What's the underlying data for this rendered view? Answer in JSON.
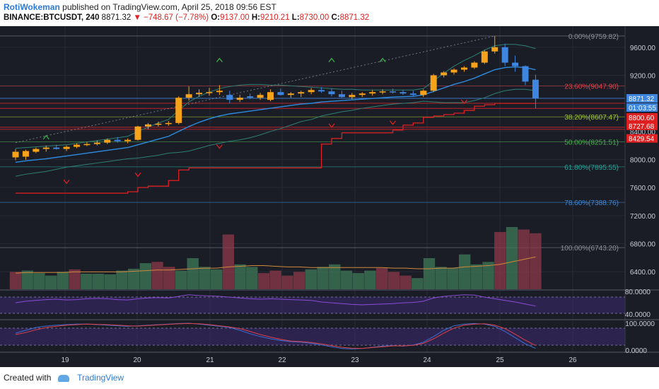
{
  "header": {
    "author": "RotiWokeman",
    "published": "published on TradingView.com, April 25, 2018 09:56 EST",
    "symbol": "BINANCE:BTCUSDT, 240",
    "last": "8871.32",
    "change": "▼ −748.67 (−7.78%)",
    "o_label": "O:",
    "o": "9137.00",
    "h_label": "H:",
    "h": "9210.21",
    "l_label": "L:",
    "l": "8730.00",
    "c_label": "C:",
    "c": "8871.32"
  },
  "footer": {
    "created_with": "Created with",
    "brand": "TradingView"
  },
  "colors": {
    "up": "#f7a21b",
    "down": "#3f86e0",
    "background": "#1a1d26"
  },
  "chart_data": {
    "type": "candlestick",
    "title": "",
    "symbol": "BINANCE:BTCUSDT",
    "interval": "240",
    "x_ticks": [
      "19",
      "20",
      "21",
      "22",
      "23",
      "24",
      "25",
      "26"
    ],
    "y_ticks": [
      "6400.00",
      "6800.00",
      "7200.00",
      "7600.00",
      "8000.00",
      "8400.00",
      "9200.00",
      "9600.00"
    ],
    "ylim": [
      6150,
      9900
    ],
    "candles": [
      {
        "o": 8030,
        "h": 8150,
        "l": 7990,
        "c": 8110
      },
      {
        "o": 8040,
        "h": 8140,
        "l": 7995,
        "c": 8120
      },
      {
        "o": 8110,
        "h": 8170,
        "l": 8090,
        "c": 8150
      },
      {
        "o": 8150,
        "h": 8200,
        "l": 8110,
        "c": 8170
      },
      {
        "o": 8170,
        "h": 8210,
        "l": 8140,
        "c": 8150
      },
      {
        "o": 8150,
        "h": 8200,
        "l": 8120,
        "c": 8180
      },
      {
        "o": 8180,
        "h": 8230,
        "l": 8160,
        "c": 8210
      },
      {
        "o": 8210,
        "h": 8250,
        "l": 8190,
        "c": 8220
      },
      {
        "o": 8220,
        "h": 8270,
        "l": 8200,
        "c": 8240
      },
      {
        "o": 8240,
        "h": 8300,
        "l": 8220,
        "c": 8280
      },
      {
        "o": 8280,
        "h": 8320,
        "l": 8240,
        "c": 8260
      },
      {
        "o": 8260,
        "h": 8300,
        "l": 8230,
        "c": 8280
      },
      {
        "o": 8280,
        "h": 8480,
        "l": 8270,
        "c": 8470
      },
      {
        "o": 8470,
        "h": 8520,
        "l": 8430,
        "c": 8500
      },
      {
        "o": 8500,
        "h": 8540,
        "l": 8470,
        "c": 8510
      },
      {
        "o": 8510,
        "h": 8550,
        "l": 8480,
        "c": 8520
      },
      {
        "o": 8520,
        "h": 8900,
        "l": 8500,
        "c": 8880
      },
      {
        "o": 8880,
        "h": 9040,
        "l": 8840,
        "c": 8930
      },
      {
        "o": 8930,
        "h": 9000,
        "l": 8890,
        "c": 8950
      },
      {
        "o": 8950,
        "h": 9020,
        "l": 8910,
        "c": 8960
      },
      {
        "o": 8960,
        "h": 9060,
        "l": 8920,
        "c": 8980
      },
      {
        "o": 8920,
        "h": 8980,
        "l": 8800,
        "c": 8850
      },
      {
        "o": 8850,
        "h": 8920,
        "l": 8820,
        "c": 8880
      },
      {
        "o": 8900,
        "h": 8940,
        "l": 8860,
        "c": 8880
      },
      {
        "o": 8880,
        "h": 8950,
        "l": 8850,
        "c": 8920
      },
      {
        "o": 8850,
        "h": 9000,
        "l": 8830,
        "c": 8960
      },
      {
        "o": 8960,
        "h": 9010,
        "l": 8910,
        "c": 8920
      },
      {
        "o": 8920,
        "h": 8960,
        "l": 8880,
        "c": 8940
      },
      {
        "o": 8940,
        "h": 8980,
        "l": 8890,
        "c": 8960
      },
      {
        "o": 8960,
        "h": 9020,
        "l": 8930,
        "c": 8990
      },
      {
        "o": 8990,
        "h": 9030,
        "l": 8950,
        "c": 8970
      },
      {
        "o": 8970,
        "h": 9010,
        "l": 8900,
        "c": 8930
      },
      {
        "o": 8930,
        "h": 8980,
        "l": 8880,
        "c": 8890
      },
      {
        "o": 8890,
        "h": 8950,
        "l": 8860,
        "c": 8920
      },
      {
        "o": 8920,
        "h": 8960,
        "l": 8890,
        "c": 8940
      },
      {
        "o": 8940,
        "h": 8990,
        "l": 8910,
        "c": 8960
      },
      {
        "o": 8960,
        "h": 9000,
        "l": 8930,
        "c": 8970
      },
      {
        "o": 8970,
        "h": 9010,
        "l": 8940,
        "c": 8960
      },
      {
        "o": 8960,
        "h": 8990,
        "l": 8920,
        "c": 8940
      },
      {
        "o": 8940,
        "h": 8980,
        "l": 8900,
        "c": 8920
      },
      {
        "o": 8920,
        "h": 9000,
        "l": 8890,
        "c": 8980
      },
      {
        "o": 8980,
        "h": 9220,
        "l": 8960,
        "c": 9200
      },
      {
        "o": 9200,
        "h": 9260,
        "l": 9170,
        "c": 9240
      },
      {
        "o": 9240,
        "h": 9300,
        "l": 9210,
        "c": 9280
      },
      {
        "o": 9280,
        "h": 9330,
        "l": 9250,
        "c": 9310
      },
      {
        "o": 9310,
        "h": 9400,
        "l": 9290,
        "c": 9380
      },
      {
        "o": 9380,
        "h": 9560,
        "l": 9360,
        "c": 9540
      },
      {
        "o": 9540,
        "h": 9760,
        "l": 9510,
        "c": 9600
      },
      {
        "o": 9600,
        "h": 9650,
        "l": 9330,
        "c": 9380
      },
      {
        "o": 9380,
        "h": 9480,
        "l": 9250,
        "c": 9330
      },
      {
        "o": 9330,
        "h": 9340,
        "l": 9060,
        "c": 9110
      },
      {
        "o": 9137,
        "h": 9210,
        "l": 8730,
        "c": 8871
      }
    ],
    "bollinger": {
      "basis": [
        7960,
        7980,
        7995,
        8010,
        8030,
        8050,
        8070,
        8090,
        8110,
        8130,
        8150,
        8170,
        8210,
        8250,
        8290,
        8330,
        8400,
        8470,
        8530,
        8580,
        8620,
        8650,
        8670,
        8690,
        8710,
        8730,
        8750,
        8770,
        8790,
        8800,
        8820,
        8830,
        8840,
        8850,
        8860,
        8870,
        8880,
        8890,
        8895,
        8900,
        8920,
        8970,
        9020,
        9070,
        9110,
        9160,
        9220,
        9280,
        9310,
        9320,
        9310,
        9280
      ],
      "upper": [
        8160,
        8170,
        8180,
        8190,
        8200,
        8210,
        8230,
        8250,
        8270,
        8290,
        8310,
        8330,
        8400,
        8460,
        8520,
        8570,
        8700,
        8820,
        8900,
        8960,
        9010,
        9040,
        9060,
        9070,
        9070,
        9060,
        9060,
        9050,
        9040,
        9030,
        9020,
        9010,
        9000,
        9000,
        8990,
        8990,
        8990,
        8990,
        8990,
        8990,
        9010,
        9120,
        9230,
        9330,
        9410,
        9480,
        9560,
        9620,
        9640,
        9640,
        9620,
        9580
      ],
      "lower": [
        7760,
        7790,
        7810,
        7830,
        7860,
        7890,
        7910,
        7930,
        7950,
        7970,
        7990,
        8010,
        8020,
        8040,
        8060,
        8090,
        8100,
        8120,
        8160,
        8200,
        8230,
        8260,
        8280,
        8310,
        8350,
        8400,
        8440,
        8490,
        8540,
        8570,
        8620,
        8650,
        8680,
        8700,
        8730,
        8750,
        8770,
        8790,
        8800,
        8810,
        8830,
        8820,
        8810,
        8810,
        8810,
        8840,
        8880,
        8940,
        8980,
        9000,
        9000,
        8980
      ]
    },
    "stop_line": [
      7520,
      7520,
      7520,
      7520,
      7520,
      7520,
      7520,
      7520,
      7520,
      7520,
      7520,
      7540,
      7600,
      7620,
      7620,
      7700,
      7850,
      7880,
      7880,
      7880,
      7880,
      7880,
      7880,
      7880,
      7880,
      7880,
      7880,
      7880,
      7880,
      7880,
      8220,
      8300,
      8380,
      8380,
      8380,
      8380,
      8380,
      8420,
      8490,
      8520,
      8600,
      8620,
      8640,
      8660,
      8700,
      8760,
      8780,
      8800,
      8800,
      8800,
      8800,
      8800
    ],
    "fibonacci": [
      {
        "label": "0.00%(9759.82)",
        "price": 9759.82,
        "color": "#8c8f99"
      },
      {
        "label": "23.60%(9047.90)",
        "price": 9047.9,
        "color": "#e0434b"
      },
      {
        "label": "38.20%(8607.47)",
        "price": 8607.47,
        "color": "#a3c837"
      },
      {
        "label": "50.00%(8251.51)",
        "price": 8251.51,
        "color": "#4caf50"
      },
      {
        "label": "61.80%(7895.55)",
        "price": 7895.55,
        "color": "#26a69a"
      },
      {
        "label": "78.60%(7388.76)",
        "price": 7388.76,
        "color": "#3f88d8"
      },
      {
        "label": "100.00%(6743.20)",
        "price": 6743.2,
        "color": "#8c8f99"
      }
    ],
    "price_labels": [
      {
        "text": "8871.32",
        "price": 8871.32,
        "color": "#3f86e0"
      },
      {
        "text": "01:03:55",
        "price": 8740,
        "color": "#3f86e0"
      },
      {
        "text": "8800.60",
        "price": 8600,
        "color": "#e02020"
      },
      {
        "text": "8727.68",
        "price": 8480,
        "color": "#e02020"
      },
      {
        "text": "8429.54",
        "price": 8300,
        "color": "#e02020"
      }
    ],
    "volume": [
      {
        "v": 0.28,
        "up": false
      },
      {
        "v": 0.3,
        "up": true
      },
      {
        "v": 0.26,
        "up": true
      },
      {
        "v": 0.22,
        "up": true
      },
      {
        "v": 0.28,
        "up": true
      },
      {
        "v": 0.32,
        "up": false
      },
      {
        "v": 0.25,
        "up": true
      },
      {
        "v": 0.25,
        "up": true
      },
      {
        "v": 0.24,
        "up": true
      },
      {
        "v": 0.3,
        "up": true
      },
      {
        "v": 0.33,
        "up": true
      },
      {
        "v": 0.42,
        "up": true
      },
      {
        "v": 0.44,
        "up": false
      },
      {
        "v": 0.36,
        "up": false
      },
      {
        "v": 0.3,
        "up": true
      },
      {
        "v": 0.5,
        "up": true
      },
      {
        "v": 0.36,
        "up": true
      },
      {
        "v": 0.32,
        "up": true
      },
      {
        "v": 0.88,
        "up": false
      },
      {
        "v": 0.4,
        "up": true
      },
      {
        "v": 0.36,
        "up": true
      },
      {
        "v": 0.26,
        "up": false
      },
      {
        "v": 0.3,
        "up": false
      },
      {
        "v": 0.22,
        "up": false
      },
      {
        "v": 0.28,
        "up": false
      },
      {
        "v": 0.32,
        "up": true
      },
      {
        "v": 0.36,
        "up": true
      },
      {
        "v": 0.4,
        "up": true
      },
      {
        "v": 0.3,
        "up": true
      },
      {
        "v": 0.26,
        "up": true
      },
      {
        "v": 0.3,
        "up": true
      },
      {
        "v": 0.34,
        "up": false
      },
      {
        "v": 0.28,
        "up": false
      },
      {
        "v": 0.22,
        "up": false
      },
      {
        "v": 0.18,
        "up": true
      },
      {
        "v": 0.5,
        "up": true
      },
      {
        "v": 0.36,
        "up": true
      },
      {
        "v": 0.34,
        "up": true
      },
      {
        "v": 0.56,
        "up": true
      },
      {
        "v": 0.4,
        "up": true
      },
      {
        "v": 0.44,
        "up": true
      },
      {
        "v": 0.92,
        "up": false
      },
      {
        "v": 1.0,
        "up": true
      },
      {
        "v": 0.96,
        "up": false
      },
      {
        "v": 0.9,
        "up": false
      }
    ],
    "volume_ma": [
      0.26,
      0.27,
      0.27,
      0.27,
      0.27,
      0.28,
      0.28,
      0.28,
      0.28,
      0.28,
      0.29,
      0.3,
      0.31,
      0.31,
      0.32,
      0.33,
      0.34,
      0.34,
      0.36,
      0.37,
      0.38,
      0.38,
      0.37,
      0.36,
      0.36,
      0.35,
      0.35,
      0.35,
      0.35,
      0.35,
      0.35,
      0.35,
      0.34,
      0.34,
      0.33,
      0.33,
      0.34,
      0.34,
      0.36,
      0.37,
      0.38,
      0.4,
      0.44,
      0.48,
      0.52
    ],
    "rsi_ticks": [
      "80.0000",
      "40.0000"
    ],
    "rsi": [
      60,
      64,
      66,
      68,
      69,
      67,
      68,
      70,
      71,
      70,
      68,
      67,
      70,
      72,
      73,
      72,
      76,
      80,
      78,
      77,
      76,
      74,
      72,
      70,
      69,
      70,
      69,
      68,
      67,
      66,
      62,
      60,
      58,
      56,
      55,
      56,
      57,
      58,
      60,
      61,
      64,
      72,
      76,
      78,
      80,
      79,
      74,
      70,
      66,
      62,
      57,
      52
    ],
    "stoch_ticks": [
      "100.0000",
      "0.0000"
    ],
    "stoch_k": [
      60,
      70,
      80,
      85,
      88,
      90,
      92,
      92,
      90,
      88,
      86,
      84,
      86,
      88,
      90,
      92,
      94,
      95,
      92,
      88,
      84,
      80,
      70,
      58,
      48,
      40,
      34,
      30,
      28,
      24,
      18,
      12,
      6,
      4,
      6,
      10,
      14,
      16,
      14,
      18,
      28,
      48,
      70,
      86,
      92,
      94,
      92,
      84,
      66,
      44,
      22,
      6
    ],
    "stoch_d": [
      55,
      62,
      72,
      80,
      84,
      88,
      90,
      92,
      91,
      90,
      88,
      86,
      85,
      87,
      89,
      91,
      93,
      94,
      93,
      90,
      86,
      82,
      76,
      66,
      55,
      46,
      38,
      32,
      30,
      27,
      22,
      16,
      10,
      7,
      6,
      9,
      12,
      15,
      15,
      17,
      24,
      40,
      60,
      78,
      88,
      92,
      93,
      88,
      76,
      56,
      35,
      16
    ]
  }
}
